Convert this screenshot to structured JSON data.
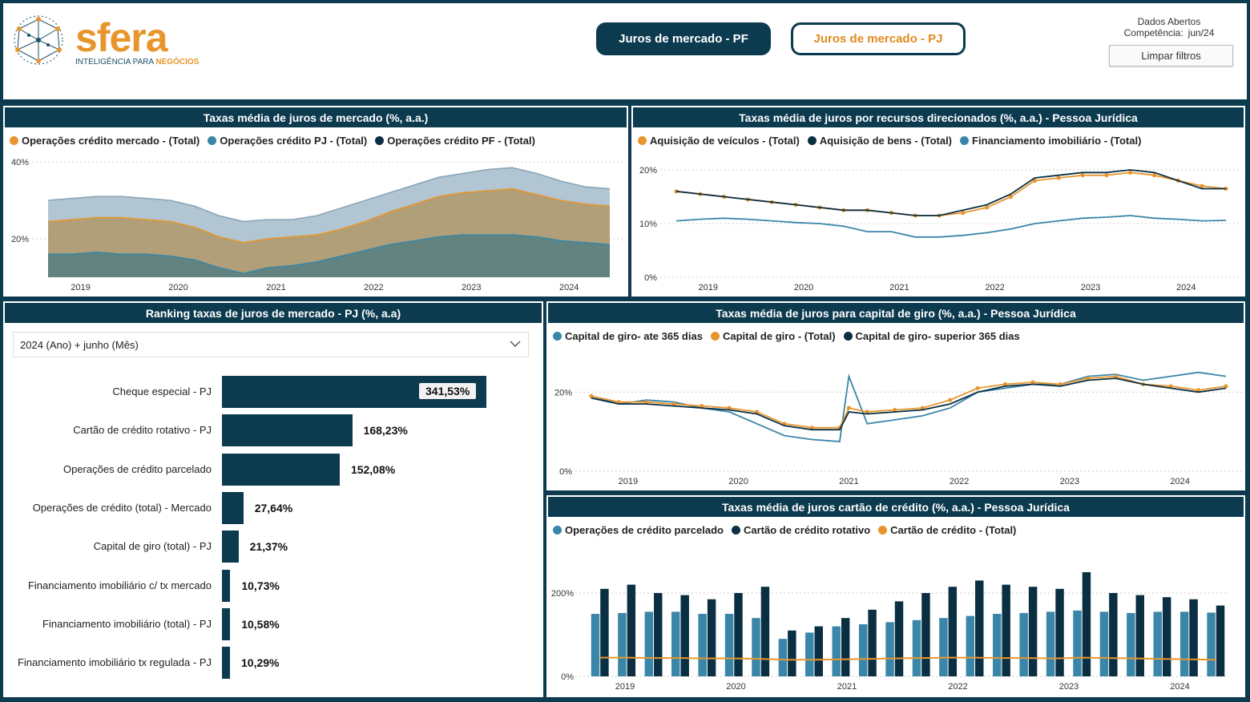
{
  "header": {
    "logo_text": "sfera",
    "logo_tag_a": "INTELIGÊNCIA PARA ",
    "logo_tag_b": "NEGÓCIOS",
    "btn_pf": "Juros de mercado - PF",
    "btn_pj": "Juros de mercado - PJ",
    "dados": "Dados Abertos",
    "competencia_label": "Competência:",
    "competencia_value": "jun/24",
    "clear_filters": "Limpar filtros"
  },
  "colors": {
    "navy": "#0c3a4f",
    "orange": "#e8962c",
    "teal": "#3a86a8",
    "dark": "#0a2f42"
  },
  "panels": {
    "p1": {
      "title": "Taxas média de juros de mercado (%, a.a.)",
      "legend": [
        "Operações crédito mercado - (Total)",
        "Operações crédito PJ - (Total)",
        "Operações crédito PF - (Total)"
      ]
    },
    "p2": {
      "title": "Taxas média de juros por recursos direcionados (%, a.a.) - Pessoa Jurídica",
      "legend": [
        "Aquisição de veículos - (Total)",
        "Aquisição de bens - (Total)",
        "Financiamento imobiliário - (Total)"
      ]
    },
    "p3": {
      "title": "Ranking taxas de juros de mercado - PJ (%, a.a)",
      "slicer": "2024 (Ano) + junho (Mês)"
    },
    "p4": {
      "title": "Taxas média de juros para capital de giro (%, a.a.) - Pessoa Jurídica",
      "legend": [
        "Capital de giro-  ate 365 dias",
        "Capital de giro - (Total)",
        "Capital de giro-  superior 365 dias"
      ]
    },
    "p5": {
      "title": "Taxas média de juros cartão de crédito (%, a.a.) - Pessoa Jurídica",
      "legend": [
        "Operações de crédito parcelado",
        "Cartão de crédito rotativo",
        "Cartão de crédito - (Total)"
      ]
    }
  },
  "chart_data": [
    {
      "type": "area",
      "title": "Taxas média de juros de mercado (%, a.a.)",
      "x": [
        "2018-09",
        "2018-12",
        "2019-03",
        "2019-06",
        "2019-09",
        "2019-12",
        "2020-03",
        "2020-06",
        "2020-09",
        "2020-12",
        "2021-03",
        "2021-06",
        "2021-09",
        "2021-12",
        "2022-03",
        "2022-06",
        "2022-09",
        "2022-12",
        "2023-03",
        "2023-06",
        "2023-09",
        "2023-12",
        "2024-03",
        "2024-06"
      ],
      "yticks": [
        "20%",
        "40%"
      ],
      "xticks": [
        "2019",
        "2020",
        "2021",
        "2022",
        "2023",
        "2024"
      ],
      "ylim": [
        10,
        40
      ],
      "series": [
        {
          "name": "Operações crédito PF - (Total)",
          "values": [
            30,
            30.5,
            31,
            31,
            30.5,
            30,
            28.5,
            26,
            24.5,
            25,
            25,
            26,
            28,
            30,
            32,
            34,
            36,
            37,
            38,
            38.5,
            37,
            35,
            33.5,
            33
          ]
        },
        {
          "name": "Operações crédito mercado - (Total)",
          "values": [
            24.5,
            25,
            25.5,
            25.5,
            25,
            24.5,
            23,
            20.5,
            19,
            20,
            20.5,
            21,
            22.5,
            24.5,
            27,
            29,
            31,
            32,
            32.5,
            33,
            31.5,
            30,
            29,
            28.5
          ]
        },
        {
          "name": "Operações crédito PJ - (Total)",
          "values": [
            16,
            16,
            16.5,
            16,
            16,
            15.5,
            14.5,
            12.5,
            11,
            12.5,
            13,
            14,
            15.5,
            17,
            18.5,
            19.5,
            20.5,
            21,
            21,
            21,
            20.5,
            19.5,
            19,
            18.5
          ]
        }
      ]
    },
    {
      "type": "line",
      "title": "Taxas média de juros por recursos direcionados (%, a.a.) - Pessoa Jurídica",
      "x": [
        "2018-09",
        "2018-12",
        "2019-03",
        "2019-06",
        "2019-09",
        "2019-12",
        "2020-03",
        "2020-06",
        "2020-09",
        "2020-12",
        "2021-03",
        "2021-06",
        "2021-09",
        "2021-12",
        "2022-03",
        "2022-06",
        "2022-09",
        "2022-12",
        "2023-03",
        "2023-06",
        "2023-09",
        "2023-12",
        "2024-03",
        "2024-06"
      ],
      "yticks": [
        "0%",
        "10%",
        "20%"
      ],
      "xticks": [
        "2019",
        "2020",
        "2021",
        "2022",
        "2023",
        "2024"
      ],
      "ylim": [
        0,
        20
      ],
      "series": [
        {
          "name": "Aquisição de veículos - (Total)",
          "values": [
            16,
            15.5,
            15,
            14.5,
            14,
            13.5,
            13,
            12.5,
            12.5,
            12,
            11.5,
            11.5,
            12,
            13,
            15,
            18,
            18.5,
            19,
            19,
            19.5,
            19,
            18,
            17,
            16.5
          ]
        },
        {
          "name": "Aquisição de bens - (Total)",
          "values": [
            16,
            15.5,
            15,
            14.5,
            14,
            13.5,
            13,
            12.5,
            12.5,
            12,
            11.5,
            11.5,
            12.5,
            13.5,
            15.5,
            18.5,
            19,
            19.5,
            19.5,
            20,
            19.5,
            18,
            16.5,
            16.5
          ]
        },
        {
          "name": "Financiamento imobiliário - (Total)",
          "values": [
            10.5,
            10.8,
            11,
            10.8,
            10.5,
            10.2,
            10,
            9.5,
            8.5,
            8.5,
            7.5,
            7.5,
            7.8,
            8.3,
            9,
            10,
            10.5,
            11,
            11.2,
            11.5,
            11,
            10.8,
            10.5,
            10.6
          ]
        }
      ]
    },
    {
      "type": "bar",
      "title": "Ranking taxas de juros de mercado - PJ (%, a.a)",
      "categories": [
        "Cheque especial - PJ",
        "Cartão de crédito rotativo - PJ",
        "Operações de crédito parcelado",
        "Operações de crédito (total) - Mercado",
        "Capital de giro (total) - PJ",
        "Financiamento imobiliário c/ tx mercado",
        "Financiamento imobiliário (total) - PJ",
        "Financiamento imobiliário tx regulada - PJ"
      ],
      "values": [
        341.53,
        168.23,
        152.08,
        27.64,
        21.37,
        10.73,
        10.58,
        10.29
      ],
      "labels": [
        "341,53%",
        "168,23%",
        "152,08%",
        "27,64%",
        "21,37%",
        "10,73%",
        "10,58%",
        "10,29%"
      ]
    },
    {
      "type": "line",
      "title": "Taxas média de juros para capital de giro (%, a.a.) - Pessoa Jurídica",
      "x": [
        "2018-09",
        "2018-12",
        "2019-03",
        "2019-06",
        "2019-09",
        "2019-12",
        "2020-03",
        "2020-06",
        "2020-09",
        "2020-12",
        "2021-01",
        "2021-03",
        "2021-06",
        "2021-09",
        "2021-12",
        "2022-03",
        "2022-06",
        "2022-09",
        "2022-12",
        "2023-03",
        "2023-06",
        "2023-09",
        "2023-12",
        "2024-03",
        "2024-06"
      ],
      "yticks": [
        "0%",
        "20%"
      ],
      "xticks": [
        "2019",
        "2020",
        "2021",
        "2022",
        "2023",
        "2024"
      ],
      "ylim": [
        0,
        30
      ],
      "series": [
        {
          "name": "Capital de giro-  ate 365 dias",
          "values": [
            19,
            17,
            18,
            17.5,
            16,
            15,
            12,
            9,
            8,
            7.5,
            24,
            12,
            13,
            14,
            16,
            20,
            21,
            22,
            22,
            24,
            24.5,
            23,
            24,
            25,
            24
          ]
        },
        {
          "name": "Capital de giro - (Total)",
          "values": [
            19,
            17.5,
            17.5,
            17,
            16.5,
            16,
            15,
            12,
            11,
            11,
            16,
            15,
            15.5,
            16,
            18,
            21,
            22,
            22.5,
            22,
            23.5,
            24,
            22,
            21.5,
            20.5,
            21.5
          ]
        },
        {
          "name": "Capital de giro-  superior 365 dias",
          "values": [
            18.5,
            17,
            17,
            16.5,
            16,
            15.5,
            14.5,
            11.5,
            10.5,
            10.5,
            15,
            14.5,
            15,
            15.5,
            17,
            20,
            21.5,
            22,
            21.5,
            23,
            23.5,
            22,
            21,
            20,
            21
          ]
        }
      ]
    },
    {
      "type": "bar",
      "title": "Taxas média de juros cartão de crédito (%, a.a.) - Pessoa Jurídica",
      "yticks": [
        "0%",
        "200%"
      ],
      "xticks": [
        "2019",
        "2020",
        "2021",
        "2022",
        "2023",
        "2024"
      ],
      "ylim": [
        0,
        300
      ],
      "series": [
        {
          "name": "Operações de crédito parcelado",
          "values": [
            150,
            152,
            155,
            155,
            150,
            150,
            140,
            90,
            105,
            120,
            125,
            130,
            135,
            140,
            145,
            150,
            152,
            155,
            158,
            155,
            152,
            155,
            155,
            153
          ]
        },
        {
          "name": "Cartão de crédito rotativo",
          "values": [
            210,
            220,
            200,
            195,
            185,
            200,
            215,
            110,
            120,
            140,
            160,
            180,
            200,
            215,
            230,
            220,
            215,
            210,
            250,
            200,
            195,
            190,
            185,
            170
          ]
        },
        {
          "name": "Cartão de crédito - (Total)",
          "values": [
            45,
            45,
            44,
            44,
            43,
            43,
            42,
            40,
            40,
            41,
            42,
            43,
            44,
            45,
            45,
            44,
            44,
            43,
            45,
            44,
            43,
            42,
            41,
            40
          ]
        }
      ]
    }
  ]
}
